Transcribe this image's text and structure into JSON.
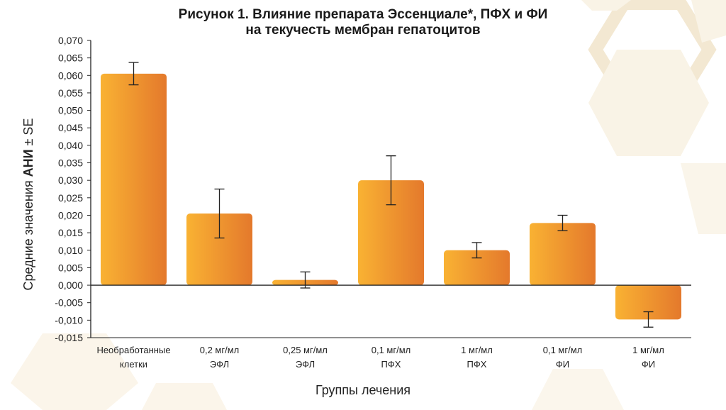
{
  "colors": {
    "bar_light": "#f9b233",
    "bar_dark": "#e4792c",
    "axis": "#222222",
    "hex_fill": "#f8f1e3"
  },
  "chart_data": {
    "type": "bar",
    "title": {
      "line1": "Рисунок 1. Влияние препарата Эссенциале*, ПФХ и ФИ",
      "line2": "на текучесть мембран гепатоцитов"
    },
    "ylabel": {
      "prefix": "Средние значения ",
      "bold": "АНИ",
      "suffix": " ± SE"
    },
    "xlabel": "Группы лечения",
    "ylim": [
      -0.015,
      0.07
    ],
    "yticks": [
      0.07,
      0.065,
      0.06,
      0.055,
      0.05,
      0.045,
      0.04,
      0.035,
      0.03,
      0.025,
      0.02,
      0.015,
      0.01,
      0.005,
      0.0,
      -0.005,
      -0.01,
      -0.015
    ],
    "ytick_labels": [
      "0,070",
      "0,065",
      "0,060",
      "0,055",
      "0,050",
      "0,045",
      "0,040",
      "0,035",
      "0,030",
      "0,025",
      "0,020",
      "0,015",
      "0,010",
      "0,005",
      "0,000",
      "-0,005",
      "-0,010",
      "-0,015"
    ],
    "categories": [
      [
        "Необработанные",
        "клетки"
      ],
      [
        "0,2 мг/мл",
        "ЭФЛ"
      ],
      [
        "0,25 мг/мл",
        "ЭФЛ"
      ],
      [
        "0,1 мг/мл",
        "ПФХ"
      ],
      [
        "1 мг/мл",
        "ПФХ"
      ],
      [
        "0,1 мг/мл",
        "ФИ"
      ],
      [
        "1 мг/мл",
        "ФИ"
      ]
    ],
    "values": [
      0.0605,
      0.0205,
      0.0015,
      0.03,
      0.01,
      0.0178,
      -0.0098
    ],
    "errors": [
      0.0032,
      0.007,
      0.0023,
      0.007,
      0.0022,
      0.0022,
      0.0022
    ]
  }
}
